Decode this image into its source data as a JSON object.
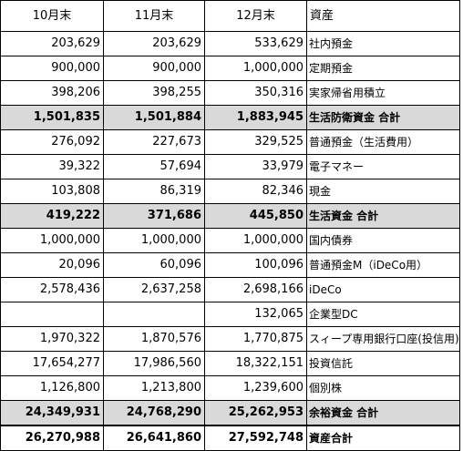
{
  "headers": [
    "10月末",
    "11月末",
    "12月末",
    "資産"
  ],
  "rows": [
    {
      "oct": "203,629",
      "nov": "203,629",
      "dec": "533,629",
      "label": "社内預金",
      "type": "normal"
    },
    {
      "oct": "900,000",
      "nov": "900,000",
      "dec": "1,000,000",
      "label": "定期預金",
      "type": "normal"
    },
    {
      "oct": "398,206",
      "nov": "398,255",
      "dec": "350,316",
      "label": "実家帰省用積立",
      "type": "normal"
    },
    {
      "oct": "1,501,835",
      "nov": "1,501,884",
      "dec": "1,883,945",
      "label": "生活防衛資金 合計",
      "type": "subtotal"
    },
    {
      "oct": "276,092",
      "nov": "227,673",
      "dec": "329,525",
      "label": "普通預金（生活費用）",
      "type": "normal"
    },
    {
      "oct": "39,322",
      "nov": "57,694",
      "dec": "33,979",
      "label": "電子マネー",
      "type": "normal"
    },
    {
      "oct": "103,808",
      "nov": "86,319",
      "dec": "82,346",
      "label": "現金",
      "type": "normal"
    },
    {
      "oct": "419,222",
      "nov": "371,686",
      "dec": "445,850",
      "label": "生活資金 合計",
      "type": "subtotal"
    },
    {
      "oct": "1,000,000",
      "nov": "1,000,000",
      "dec": "1,000,000",
      "label": "国内債券",
      "type": "normal"
    },
    {
      "oct": "20,096",
      "nov": "60,096",
      "dec": "100,096",
      "label": "普通預金M（iDeCo用）",
      "type": "normal"
    },
    {
      "oct": "2,578,436",
      "nov": "2,637,258",
      "dec": "2,698,166",
      "label": "iDeCo",
      "type": "normal"
    },
    {
      "oct": "",
      "nov": "",
      "dec": "132,065",
      "label": "企業型DC",
      "type": "normal"
    },
    {
      "oct": "1,970,322",
      "nov": "1,870,576",
      "dec": "1,770,875",
      "label": "スィープ専用銀行口座(投信用)",
      "type": "normal"
    },
    {
      "oct": "17,654,277",
      "nov": "17,986,560",
      "dec": "18,322,151",
      "label": "投資信託",
      "type": "normal"
    },
    {
      "oct": "1,126,800",
      "nov": "1,213,800",
      "dec": "1,239,600",
      "label": "個別株",
      "type": "normal"
    },
    {
      "oct": "24,349,931",
      "nov": "24,768,290",
      "dec": "25,262,953",
      "label": "余裕資金 合計",
      "type": "subtotal"
    },
    {
      "oct": "26,270,988",
      "nov": "26,641,860",
      "dec": "27,592,748",
      "label": "資産合計",
      "type": "total"
    }
  ]
}
